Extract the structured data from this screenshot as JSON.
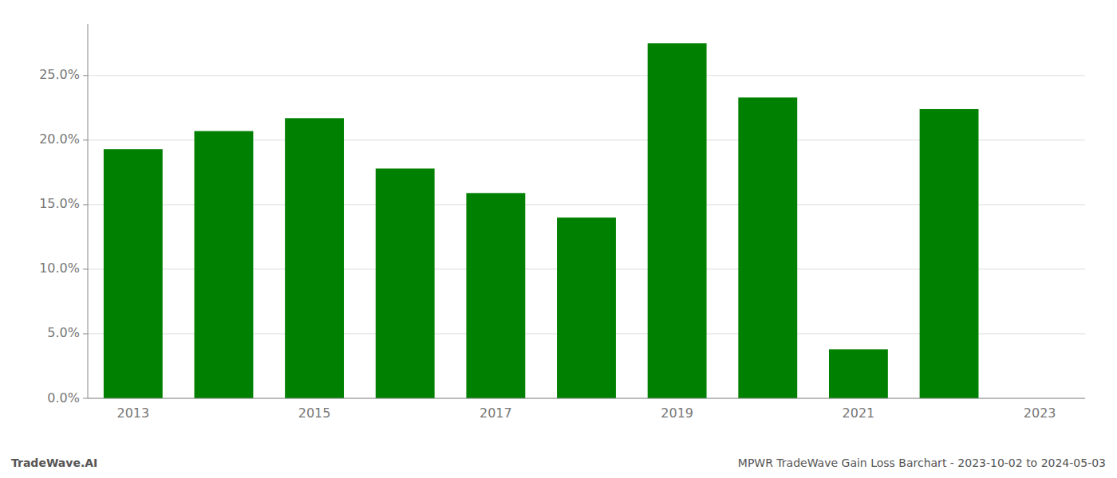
{
  "chart_data": {
    "type": "bar",
    "categories": [
      "2013",
      null,
      "2015",
      null,
      "2017",
      null,
      "2019",
      null,
      "2021",
      null,
      "2023"
    ],
    "values": [
      0.193,
      0.207,
      0.217,
      0.178,
      0.159,
      0.14,
      0.275,
      0.233,
      0.038,
      0.224,
      0.0
    ],
    "color": "#008000",
    "ylim": [
      0,
      0.29
    ],
    "yticks": [
      {
        "value": 0.0,
        "label": "0.0%"
      },
      {
        "value": 0.05,
        "label": "5.0%"
      },
      {
        "value": 0.1,
        "label": "10.0%"
      },
      {
        "value": 0.15,
        "label": "15.0%"
      },
      {
        "value": 0.2,
        "label": "20.0%"
      },
      {
        "value": 0.25,
        "label": "25.0%"
      }
    ],
    "grid": true,
    "annotations": [
      "TradeWave.AI",
      "MPWR TradeWave Gain Loss Barchart - 2023-10-02 to 2024-05-03"
    ]
  }
}
